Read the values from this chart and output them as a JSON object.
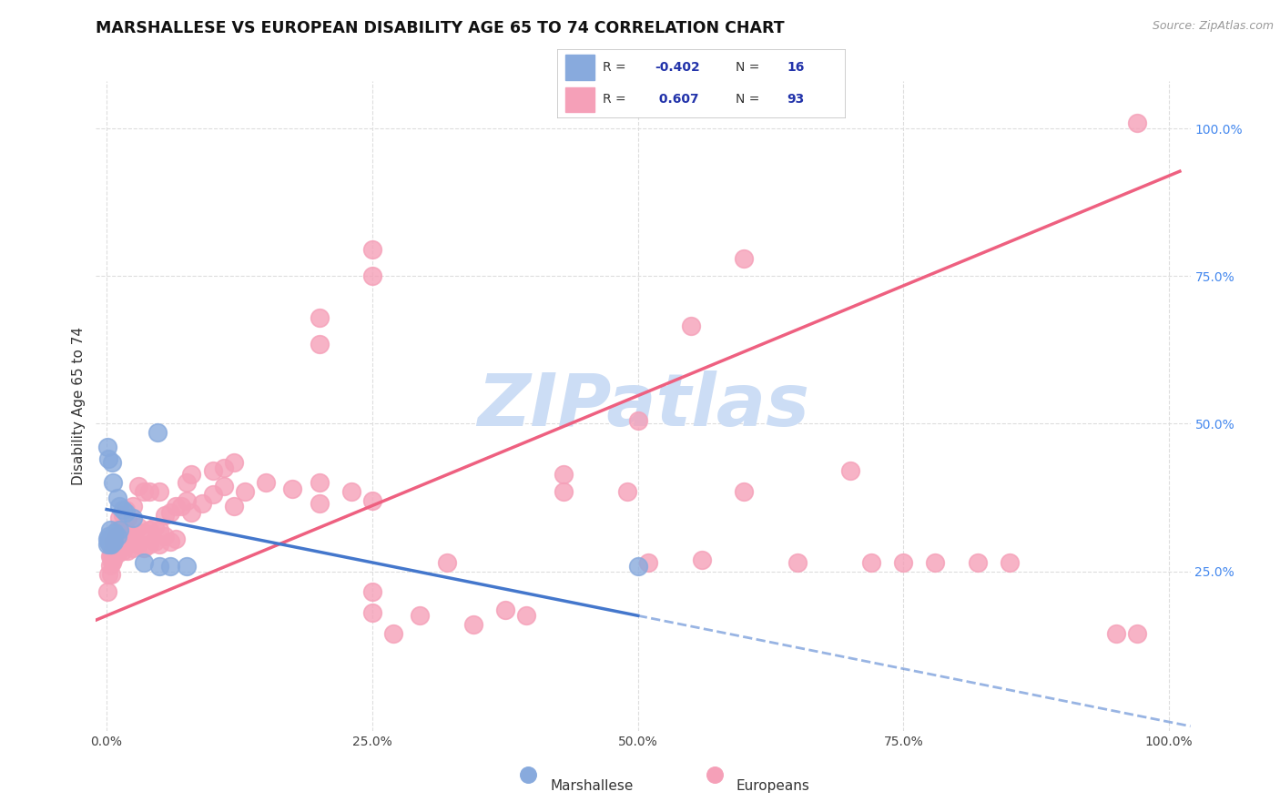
{
  "title": "MARSHALLESE VS EUROPEAN DISABILITY AGE 65 TO 74 CORRELATION CHART",
  "source": "Source: ZipAtlas.com",
  "ylabel": "Disability Age 65 to 74",
  "xlim": [
    -0.01,
    1.02
  ],
  "ylim": [
    -0.02,
    1.08
  ],
  "xticks": [
    0.0,
    0.25,
    0.5,
    0.75,
    1.0
  ],
  "xtick_labels": [
    "0.0%",
    "25.0%",
    "50.0%",
    "75.0%",
    "100.0%"
  ],
  "ytick_labels_right": [
    "25.0%",
    "50.0%",
    "75.0%",
    "100.0%"
  ],
  "yticks_right": [
    0.25,
    0.5,
    0.75,
    1.0
  ],
  "marshallese_color": "#88AADD",
  "europeans_color": "#F5A0B8",
  "marshallese_line_color": "#4477CC",
  "europeans_line_color": "#EE6080",
  "background_color": "#ffffff",
  "grid_color": "#dddddd",
  "watermark_color": "#ccddf5",
  "legend_text_color": "#2233AA",
  "legend_label_color": "#333333",
  "blue_line_y0": 0.355,
  "blue_line_y1": 0.175,
  "blue_line_x_solid_end": 0.5,
  "pink_line_y0": 0.175,
  "pink_line_y1": 0.92,
  "marshallese_points": [
    [
      0.001,
      0.295
    ],
    [
      0.001,
      0.305
    ],
    [
      0.002,
      0.3
    ],
    [
      0.002,
      0.31
    ],
    [
      0.003,
      0.295
    ],
    [
      0.003,
      0.3
    ],
    [
      0.003,
      0.32
    ],
    [
      0.004,
      0.295
    ],
    [
      0.004,
      0.305
    ],
    [
      0.005,
      0.305
    ],
    [
      0.006,
      0.3
    ],
    [
      0.007,
      0.3
    ],
    [
      0.008,
      0.315
    ],
    [
      0.01,
      0.31
    ],
    [
      0.012,
      0.32
    ],
    [
      0.001,
      0.46
    ],
    [
      0.002,
      0.44
    ],
    [
      0.005,
      0.435
    ],
    [
      0.006,
      0.4
    ],
    [
      0.01,
      0.375
    ],
    [
      0.012,
      0.36
    ],
    [
      0.015,
      0.355
    ],
    [
      0.018,
      0.35
    ],
    [
      0.025,
      0.34
    ],
    [
      0.035,
      0.265
    ],
    [
      0.05,
      0.258
    ],
    [
      0.06,
      0.258
    ],
    [
      0.075,
      0.258
    ],
    [
      0.048,
      0.485
    ],
    [
      0.5,
      0.258
    ]
  ],
  "europeans_points": [
    [
      0.001,
      0.215
    ],
    [
      0.002,
      0.245
    ],
    [
      0.003,
      0.26
    ],
    [
      0.003,
      0.275
    ],
    [
      0.004,
      0.245
    ],
    [
      0.004,
      0.275
    ],
    [
      0.005,
      0.265
    ],
    [
      0.005,
      0.285
    ],
    [
      0.006,
      0.27
    ],
    [
      0.006,
      0.3
    ],
    [
      0.007,
      0.275
    ],
    [
      0.007,
      0.3
    ],
    [
      0.008,
      0.28
    ],
    [
      0.009,
      0.285
    ],
    [
      0.009,
      0.31
    ],
    [
      0.01,
      0.28
    ],
    [
      0.01,
      0.305
    ],
    [
      0.01,
      0.32
    ],
    [
      0.012,
      0.29
    ],
    [
      0.012,
      0.31
    ],
    [
      0.012,
      0.34
    ],
    [
      0.015,
      0.285
    ],
    [
      0.015,
      0.31
    ],
    [
      0.015,
      0.345
    ],
    [
      0.018,
      0.295
    ],
    [
      0.018,
      0.32
    ],
    [
      0.018,
      0.355
    ],
    [
      0.02,
      0.285
    ],
    [
      0.02,
      0.305
    ],
    [
      0.02,
      0.34
    ],
    [
      0.025,
      0.29
    ],
    [
      0.025,
      0.31
    ],
    [
      0.025,
      0.36
    ],
    [
      0.03,
      0.295
    ],
    [
      0.03,
      0.325
    ],
    [
      0.03,
      0.395
    ],
    [
      0.035,
      0.29
    ],
    [
      0.035,
      0.315
    ],
    [
      0.035,
      0.385
    ],
    [
      0.04,
      0.295
    ],
    [
      0.04,
      0.32
    ],
    [
      0.04,
      0.385
    ],
    [
      0.045,
      0.3
    ],
    [
      0.045,
      0.325
    ],
    [
      0.05,
      0.295
    ],
    [
      0.05,
      0.32
    ],
    [
      0.05,
      0.385
    ],
    [
      0.055,
      0.31
    ],
    [
      0.055,
      0.345
    ],
    [
      0.06,
      0.3
    ],
    [
      0.06,
      0.35
    ],
    [
      0.065,
      0.305
    ],
    [
      0.065,
      0.36
    ],
    [
      0.07,
      0.36
    ],
    [
      0.075,
      0.37
    ],
    [
      0.075,
      0.4
    ],
    [
      0.08,
      0.35
    ],
    [
      0.08,
      0.415
    ],
    [
      0.09,
      0.365
    ],
    [
      0.1,
      0.38
    ],
    [
      0.1,
      0.42
    ],
    [
      0.11,
      0.395
    ],
    [
      0.11,
      0.425
    ],
    [
      0.12,
      0.36
    ],
    [
      0.12,
      0.435
    ],
    [
      0.13,
      0.385
    ],
    [
      0.15,
      0.4
    ],
    [
      0.175,
      0.39
    ],
    [
      0.2,
      0.365
    ],
    [
      0.2,
      0.4
    ],
    [
      0.23,
      0.385
    ],
    [
      0.25,
      0.18
    ],
    [
      0.25,
      0.215
    ],
    [
      0.25,
      0.37
    ],
    [
      0.27,
      0.145
    ],
    [
      0.295,
      0.175
    ],
    [
      0.32,
      0.265
    ],
    [
      0.345,
      0.16
    ],
    [
      0.375,
      0.185
    ],
    [
      0.395,
      0.175
    ],
    [
      0.43,
      0.385
    ],
    [
      0.43,
      0.415
    ],
    [
      0.49,
      0.385
    ],
    [
      0.5,
      0.505
    ],
    [
      0.51,
      0.265
    ],
    [
      0.56,
      0.27
    ],
    [
      0.6,
      0.385
    ],
    [
      0.65,
      0.265
    ],
    [
      0.7,
      0.42
    ],
    [
      0.72,
      0.265
    ],
    [
      0.75,
      0.265
    ],
    [
      0.78,
      0.265
    ],
    [
      0.82,
      0.265
    ],
    [
      0.85,
      0.265
    ],
    [
      0.95,
      0.145
    ],
    [
      0.97,
      0.145
    ],
    [
      0.2,
      0.635
    ],
    [
      0.2,
      0.68
    ],
    [
      0.25,
      0.75
    ],
    [
      0.25,
      0.795
    ],
    [
      0.55,
      0.665
    ],
    [
      0.6,
      0.78
    ],
    [
      0.97,
      1.01
    ]
  ]
}
